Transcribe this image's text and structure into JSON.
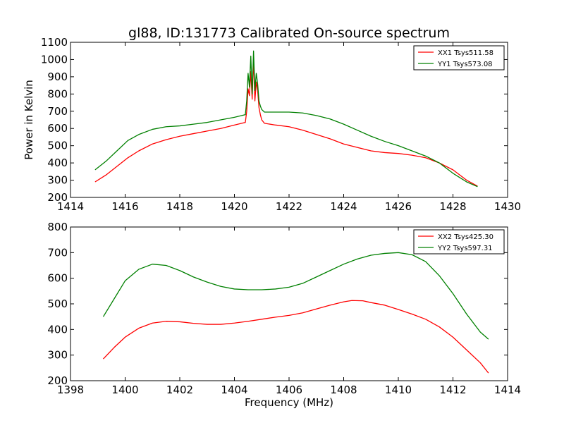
{
  "chart_data": [
    {
      "type": "line",
      "title": "gl88, ID:131773 Calibrated On-source spectrum",
      "xlabel": "",
      "ylabel": "Power in Kelvin",
      "xlim": [
        1414,
        1430
      ],
      "ylim": [
        200,
        1100
      ],
      "xticks": [
        "1414",
        "1416",
        "1418",
        "1420",
        "1422",
        "1424",
        "1426",
        "1428",
        "1430"
      ],
      "yticks": [
        "200",
        "300",
        "400",
        "500",
        "600",
        "700",
        "800",
        "900",
        "1000",
        "1100"
      ],
      "legend_position": "top-right",
      "series": [
        {
          "name": "XX1 Tsys511.58",
          "color": "#ff0000",
          "x": [
            1414.9,
            1415.3,
            1415.7,
            1416.1,
            1416.5,
            1417.0,
            1417.5,
            1418.0,
            1418.5,
            1419.0,
            1419.5,
            1420.0,
            1420.4,
            1420.45,
            1420.5,
            1420.55,
            1420.6,
            1420.65,
            1420.7,
            1420.75,
            1420.8,
            1420.85,
            1420.9,
            1420.95,
            1421.0,
            1421.1,
            1421.5,
            1422.0,
            1422.5,
            1423.0,
            1423.5,
            1424.0,
            1424.5,
            1425.0,
            1425.5,
            1426.0,
            1426.5,
            1427.0,
            1427.5,
            1428.0,
            1428.5,
            1428.9
          ],
          "values": [
            290,
            330,
            380,
            430,
            470,
            510,
            535,
            555,
            570,
            585,
            600,
            620,
            635,
            700,
            830,
            790,
            930,
            770,
            1000,
            760,
            870,
            820,
            720,
            680,
            650,
            630,
            620,
            610,
            590,
            565,
            540,
            510,
            490,
            470,
            460,
            455,
            445,
            430,
            400,
            360,
            300,
            265
          ]
        },
        {
          "name": "YY1 Tsys573.08",
          "color": "#008000",
          "x": [
            1414.9,
            1415.3,
            1415.7,
            1416.1,
            1416.5,
            1417.0,
            1417.5,
            1418.0,
            1418.5,
            1419.0,
            1419.5,
            1420.0,
            1420.4,
            1420.45,
            1420.5,
            1420.55,
            1420.6,
            1420.65,
            1420.7,
            1420.75,
            1420.8,
            1420.85,
            1420.9,
            1420.95,
            1421.0,
            1421.1,
            1421.5,
            1422.0,
            1422.5,
            1423.0,
            1423.5,
            1424.0,
            1424.5,
            1425.0,
            1425.5,
            1426.0,
            1426.5,
            1427.0,
            1427.5,
            1428.0,
            1428.5,
            1428.9
          ],
          "values": [
            360,
            410,
            470,
            530,
            565,
            595,
            610,
            615,
            625,
            635,
            650,
            665,
            680,
            760,
            920,
            840,
            1020,
            800,
            1050,
            820,
            920,
            860,
            760,
            730,
            710,
            695,
            695,
            695,
            690,
            675,
            655,
            625,
            590,
            555,
            525,
            500,
            470,
            440,
            400,
            340,
            290,
            262
          ]
        }
      ]
    },
    {
      "type": "line",
      "title": "",
      "xlabel": "Frequency (MHz)",
      "ylabel": "",
      "xlim": [
        1398,
        1414
      ],
      "ylim": [
        200,
        800
      ],
      "xticks": [
        "1398",
        "1400",
        "1402",
        "1404",
        "1406",
        "1408",
        "1410",
        "1412",
        "1414"
      ],
      "yticks": [
        "200",
        "300",
        "400",
        "500",
        "600",
        "700",
        "800"
      ],
      "legend_position": "top-right",
      "series": [
        {
          "name": "XX2 Tsys425.30",
          "color": "#ff0000",
          "x": [
            1399.2,
            1399.6,
            1400.0,
            1400.5,
            1401.0,
            1401.5,
            1402.0,
            1402.5,
            1403.0,
            1403.5,
            1404.0,
            1404.5,
            1405.0,
            1405.5,
            1406.0,
            1406.5,
            1407.0,
            1407.5,
            1408.0,
            1408.3,
            1408.7,
            1409.0,
            1409.5,
            1410.0,
            1410.5,
            1411.0,
            1411.5,
            1412.0,
            1412.5,
            1413.0,
            1413.3
          ],
          "values": [
            285,
            330,
            370,
            405,
            425,
            432,
            430,
            424,
            420,
            420,
            425,
            432,
            440,
            448,
            455,
            465,
            480,
            495,
            508,
            513,
            512,
            505,
            495,
            478,
            460,
            440,
            410,
            370,
            320,
            270,
            230
          ]
        },
        {
          "name": "YY2 Tsys597.31",
          "color": "#008000",
          "x": [
            1399.2,
            1399.6,
            1400.0,
            1400.5,
            1401.0,
            1401.5,
            1402.0,
            1402.5,
            1403.0,
            1403.5,
            1404.0,
            1404.5,
            1405.0,
            1405.5,
            1406.0,
            1406.5,
            1407.0,
            1407.5,
            1408.0,
            1408.5,
            1409.0,
            1409.5,
            1410.0,
            1410.5,
            1411.0,
            1411.5,
            1412.0,
            1412.5,
            1413.0,
            1413.3
          ],
          "values": [
            450,
            520,
            590,
            635,
            655,
            650,
            630,
            605,
            585,
            568,
            558,
            555,
            555,
            558,
            565,
            580,
            605,
            630,
            655,
            675,
            690,
            697,
            700,
            692,
            665,
            610,
            540,
            460,
            390,
            362
          ]
        }
      ]
    }
  ]
}
